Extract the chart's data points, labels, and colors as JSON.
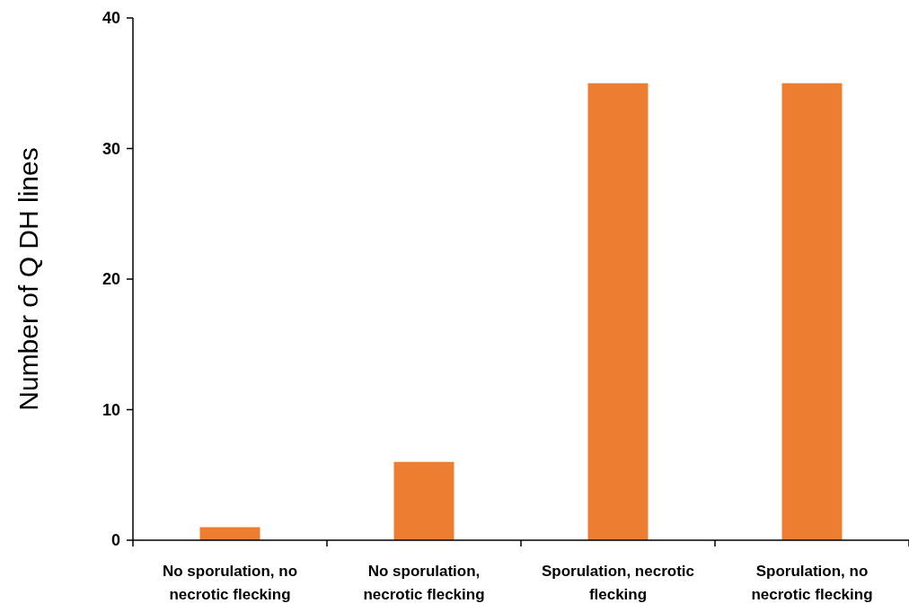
{
  "chart_data": {
    "type": "bar",
    "ylabel": "Number of Q DH lines",
    "categories": [
      "No sporulation, no necrotic flecking",
      "No sporulation, necrotic flecking",
      "Sporulation, necrotic flecking",
      "Sporulation, no necrotic flecking"
    ],
    "values": [
      1,
      6,
      35,
      35
    ],
    "color": "#ed7d31",
    "ylim": [
      0,
      40
    ],
    "yticks": [
      0,
      10,
      20,
      30,
      40
    ]
  }
}
